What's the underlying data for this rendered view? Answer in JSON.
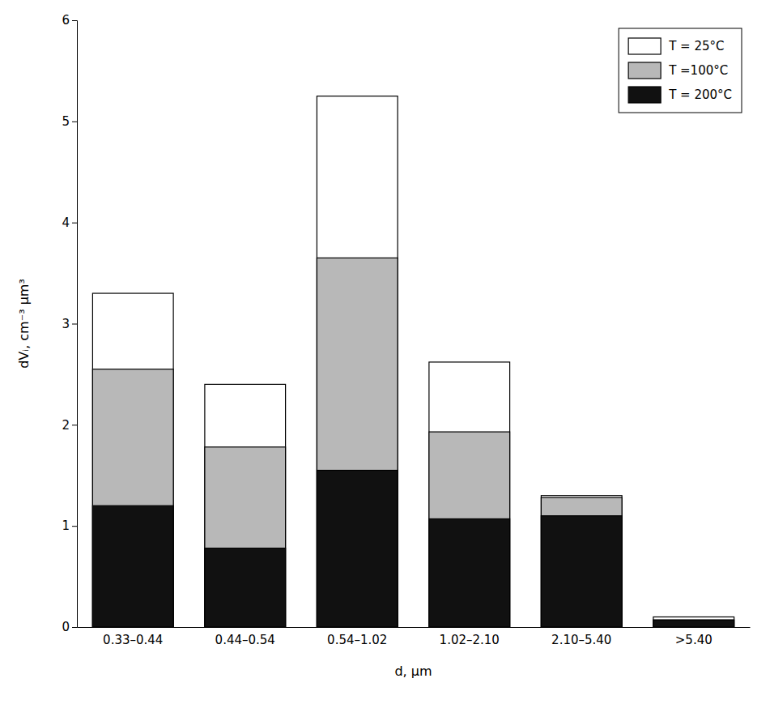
{
  "chart_data": {
    "type": "bar",
    "categories": [
      "0.33–0.44",
      "0.44–0.54",
      "0.54–1.02",
      "1.02–2.10",
      "2.10–5.40",
      ">5.40"
    ],
    "series": [
      {
        "name": "T = 25°C",
        "color": "#ffffff",
        "values": [
          3.3,
          2.4,
          5.25,
          2.62,
          1.3,
          0.1
        ]
      },
      {
        "name": "T =100°C",
        "color": "#b8b8b8",
        "values": [
          2.55,
          1.78,
          3.65,
          1.93,
          1.28,
          0.07
        ]
      },
      {
        "name": "T = 200°C",
        "color": "#111111",
        "values": [
          1.2,
          0.78,
          1.55,
          1.07,
          1.1,
          0.07
        ]
      }
    ],
    "xlabel": "d, μm",
    "ylabel": "dVᵢ, cm⁻³ μm³",
    "ylim": [
      0,
      6
    ],
    "yticks": [
      0,
      1,
      2,
      3,
      4,
      5,
      6
    ],
    "grid": false,
    "legend": "upper right"
  }
}
